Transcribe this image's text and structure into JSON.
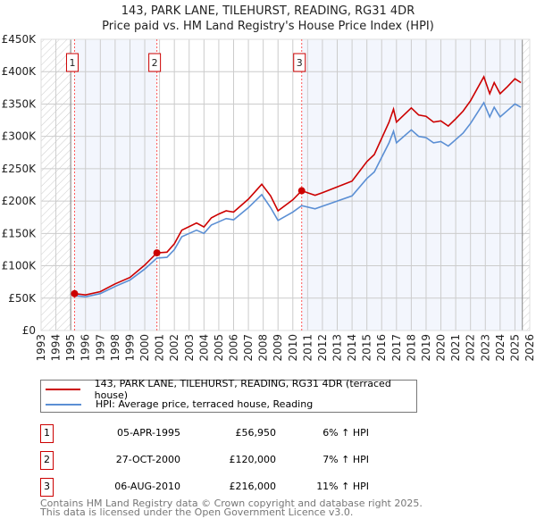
{
  "title": "143, PARK LANE, TILEHURST, READING, RG31 4DR",
  "subtitle": "Price paid vs. HM Land Registry's House Price Index (HPI)",
  "chart_data": {
    "type": "line",
    "xlim": [
      1993,
      2026
    ],
    "ylim": [
      0,
      450000
    ],
    "y_ticks": [
      0,
      50000,
      100000,
      150000,
      200000,
      250000,
      300000,
      350000,
      400000,
      450000
    ],
    "y_tick_labels": [
      "£0",
      "£50K",
      "£100K",
      "£150K",
      "£200K",
      "£250K",
      "£300K",
      "£350K",
      "£400K",
      "£450K"
    ],
    "x_ticks": [
      "1993",
      "1994",
      "1995",
      "1996",
      "1997",
      "1998",
      "1999",
      "2000",
      "2001",
      "2002",
      "2003",
      "2004",
      "2005",
      "2006",
      "2007",
      "2008",
      "2009",
      "2010",
      "2011",
      "2012",
      "2013",
      "2014",
      "2015",
      "2016",
      "2017",
      "2018",
      "2019",
      "2020",
      "2021",
      "2022",
      "2023",
      "2024",
      "2025",
      "2026"
    ],
    "grid": true,
    "data_range": [
      1995.0,
      2025.5
    ],
    "series": [
      {
        "name": "143, PARK LANE, TILEHURST, READING, RG31 4DR (terraced house)",
        "color": "#cc0000",
        "x": [
          1995.26,
          1996,
          1997,
          1998,
          1999,
          2000,
          2000.82,
          2001.5,
          2002,
          2002.5,
          2003.5,
          2004,
          2004.5,
          2005,
          2005.5,
          2006,
          2007,
          2007.9,
          2008.5,
          2009,
          2010,
          2010.6,
          2011.5,
          2012,
          2013,
          2014,
          2015,
          2015.5,
          2016.5,
          2016.8,
          2017,
          2018,
          2018.5,
          2019,
          2019.5,
          2020,
          2020.5,
          2021,
          2021.5,
          2022,
          2022.9,
          2023.3,
          2023.6,
          2024,
          2024.5,
          2025,
          2025.4
        ],
        "y": [
          56950,
          55000,
          60000,
          72000,
          82000,
          101000,
          120000,
          121000,
          134000,
          155000,
          166000,
          160000,
          174000,
          180000,
          185000,
          183000,
          203000,
          226000,
          208000,
          185000,
          202000,
          216000,
          209000,
          213000,
          222000,
          231000,
          261000,
          272000,
          322000,
          342000,
          322000,
          344000,
          333000,
          331000,
          322000,
          324000,
          316000,
          327000,
          339000,
          355000,
          392000,
          366000,
          383000,
          366000,
          377000,
          389000,
          383000
        ]
      },
      {
        "name": "HPI: Average price, terraced house, Reading",
        "color": "#5b8fd4",
        "x": [
          1995.26,
          1996,
          1997,
          1998,
          1999,
          2000,
          2000.82,
          2001.5,
          2002,
          2002.5,
          2003.5,
          2004,
          2004.5,
          2005,
          2005.5,
          2006,
          2007,
          2007.9,
          2008.5,
          2009,
          2010,
          2010.6,
          2011.5,
          2012,
          2013,
          2014,
          2015,
          2015.5,
          2016.5,
          2016.8,
          2017,
          2018,
          2018.5,
          2019,
          2019.5,
          2020,
          2020.5,
          2021,
          2021.5,
          2022,
          2022.9,
          2023.3,
          2023.6,
          2024,
          2024.5,
          2025,
          2025.4
        ],
        "y": [
          54000,
          52000,
          57000,
          68000,
          78000,
          95000,
          112000,
          113000,
          125000,
          145000,
          155000,
          150000,
          163000,
          168000,
          173000,
          171000,
          190000,
          210000,
          190000,
          170000,
          183000,
          193000,
          188000,
          192000,
          200000,
          208000,
          235000,
          245000,
          290000,
          308000,
          290000,
          310000,
          300000,
          298000,
          290000,
          292000,
          285000,
          295000,
          305000,
          320000,
          352000,
          330000,
          345000,
          330000,
          340000,
          350000,
          345000
        ]
      }
    ],
    "sales": [
      {
        "label": "1",
        "x": 1995.26,
        "price": 56950
      },
      {
        "label": "2",
        "x": 2000.82,
        "price": 120000
      },
      {
        "label": "3",
        "x": 2010.6,
        "price": 216000
      }
    ]
  },
  "legend": {
    "property": "143, PARK LANE, TILEHURST, READING, RG31 4DR (terraced house)",
    "hpi": "HPI: Average price, terraced house, Reading"
  },
  "table": [
    {
      "num": "1",
      "date": "05-APR-1995",
      "price": "£56,950",
      "hpi": "6% ↑ HPI"
    },
    {
      "num": "2",
      "date": "27-OCT-2000",
      "price": "£120,000",
      "hpi": "7% ↑ HPI"
    },
    {
      "num": "3",
      "date": "06-AUG-2010",
      "price": "£216,000",
      "hpi": "11% ↑ HPI"
    }
  ],
  "footer": [
    "Contains HM Land Registry data © Crown copyright and database right 2025.",
    "This data is licensed under the Open Government Licence v3.0."
  ]
}
